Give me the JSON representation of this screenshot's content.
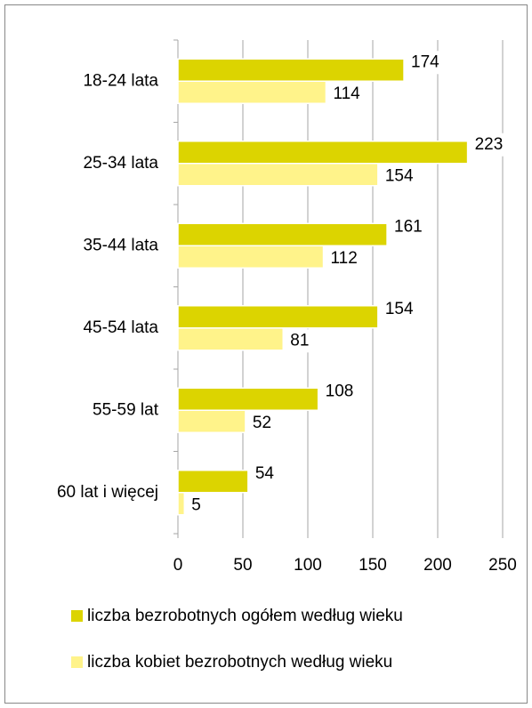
{
  "chart_data": {
    "type": "bar",
    "orientation": "horizontal",
    "categories": [
      "18-24 lata",
      "25-34 lata",
      "35-44 lata",
      "45-54 lata",
      "55-59 lat",
      "60 lat i więcej"
    ],
    "series": [
      {
        "name": "liczba bezrobotnych ogółem według wieku",
        "color": "#dcd400",
        "values": [
          174,
          223,
          161,
          154,
          108,
          54
        ]
      },
      {
        "name": "liczba kobiet bezrobotnych według wieku",
        "color": "#fff38a",
        "values": [
          114,
          154,
          112,
          81,
          52,
          5
        ]
      }
    ],
    "xlim": [
      0,
      250
    ],
    "xticks": [
      0,
      50,
      100,
      150,
      200,
      250
    ],
    "grid": true,
    "legend": "bottom"
  }
}
